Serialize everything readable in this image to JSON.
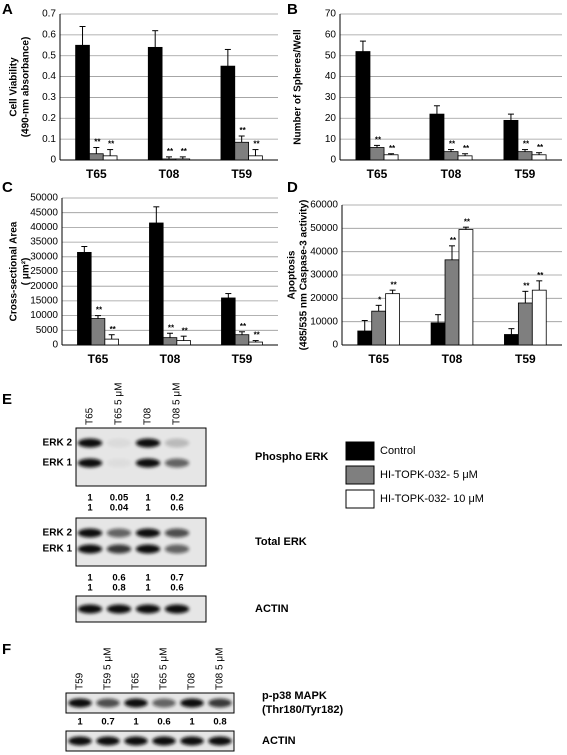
{
  "legend": [
    {
      "name": "Control",
      "color": "#000000"
    },
    {
      "name": "HI-TOPK-032- 5 μM",
      "color": "#7f7f7f"
    },
    {
      "name": "HI-TOPK-032- 10 μM",
      "color": "#ffffff"
    }
  ],
  "chart_data": [
    {
      "type": "bar",
      "panel": "A",
      "ylabel": [
        "Cell Viability",
        "(490-nm absorbance)"
      ],
      "categories": [
        "T65",
        "T08",
        "T59"
      ],
      "ylim": [
        0,
        0.7
      ],
      "yticks": [
        0,
        0.1,
        0.2,
        0.3,
        0.4,
        0.5,
        0.6,
        0.7
      ],
      "grid": true,
      "series": [
        {
          "values": [
            0.55,
            0.54,
            0.45
          ],
          "errors": [
            0.09,
            0.08,
            0.08
          ]
        },
        {
          "values": [
            0.03,
            0.005,
            0.085
          ],
          "errors": [
            0.03,
            0.01,
            0.03
          ],
          "significance": [
            "**",
            "**",
            "**"
          ]
        },
        {
          "values": [
            0.02,
            0.005,
            0.02
          ],
          "errors": [
            0.03,
            0.01,
            0.03
          ],
          "significance": [
            "**",
            "**",
            "**"
          ]
        }
      ]
    },
    {
      "type": "bar",
      "panel": "B",
      "ylabel": [
        "Number of Spheres/Well"
      ],
      "categories": [
        "T65",
        "T08",
        "T59"
      ],
      "ylim": [
        0,
        70
      ],
      "yticks": [
        0,
        10,
        20,
        30,
        40,
        50,
        60,
        70
      ],
      "grid": true,
      "series": [
        {
          "values": [
            52,
            22,
            19
          ],
          "errors": [
            5,
            4,
            3
          ]
        },
        {
          "values": [
            6,
            4,
            4
          ],
          "errors": [
            1,
            1,
            1
          ],
          "significance": [
            "**",
            "**",
            "**"
          ]
        },
        {
          "values": [
            2.5,
            2,
            2.5
          ],
          "errors": [
            0.5,
            1,
            1
          ],
          "significance": [
            "**",
            "**",
            "**"
          ]
        }
      ]
    },
    {
      "type": "bar",
      "panel": "C",
      "ylabel": [
        "Cross-sectional Area",
        "( μm²)"
      ],
      "categories": [
        "T65",
        "T08",
        "T59"
      ],
      "ylim": [
        0,
        50000
      ],
      "yticks": [
        0,
        5000,
        10000,
        15000,
        20000,
        25000,
        30000,
        35000,
        40000,
        45000,
        50000
      ],
      "grid": true,
      "series": [
        {
          "values": [
            31500,
            41500,
            16000
          ],
          "errors": [
            2000,
            5500,
            1500
          ]
        },
        {
          "values": [
            9000,
            2500,
            3500
          ],
          "errors": [
            1000,
            1500,
            1000
          ],
          "significance": [
            "**",
            "**",
            "**"
          ]
        },
        {
          "values": [
            2000,
            1500,
            1000
          ],
          "errors": [
            1500,
            1500,
            500
          ],
          "significance": [
            "**",
            "**",
            "**"
          ]
        }
      ]
    },
    {
      "type": "bar",
      "panel": "D",
      "ylabel": [
        "Apoptosis",
        "(485/535 nm Caspase-3 activity)"
      ],
      "categories": [
        "T65",
        "T08",
        "T59"
      ],
      "ylim": [
        0,
        60000
      ],
      "yticks": [
        0,
        10000,
        20000,
        30000,
        40000,
        50000,
        60000
      ],
      "grid": true,
      "series": [
        {
          "values": [
            6000,
            9500,
            4500
          ],
          "errors": [
            4500,
            3500,
            2500
          ]
        },
        {
          "values": [
            14500,
            36500,
            18000
          ],
          "errors": [
            2500,
            6000,
            5000
          ],
          "significance": [
            "*",
            "**",
            "**"
          ]
        },
        {
          "values": [
            22000,
            49500,
            23500
          ],
          "errors": [
            1500,
            1000,
            4000
          ],
          "significance": [
            "**",
            "**",
            "**"
          ]
        }
      ]
    }
  ],
  "blots": [
    {
      "panel": "E",
      "lanes": [
        "T65",
        "T65 5 μM",
        "T08",
        "T08 5 μM"
      ],
      "sections": [
        {
          "label": [
            "Phospho ERK"
          ],
          "band_labels": [
            "ERK 2",
            "ERK 1"
          ],
          "quant": [
            [
              1,
              0.05,
              1,
              0.2
            ],
            [
              1,
              0.04,
              1,
              0.6
            ]
          ]
        },
        {
          "label": [
            "Total ERK"
          ],
          "band_labels": [
            "ERK 2",
            "ERK 1"
          ],
          "quant": [
            [
              1,
              0.6,
              1,
              0.7
            ],
            [
              1,
              0.8,
              1,
              0.6
            ]
          ]
        },
        {
          "label": [
            "ACTIN"
          ]
        }
      ]
    },
    {
      "panel": "F",
      "lanes": [
        "T59",
        "T59 5 μM",
        "T65",
        "T65 5 μM",
        "T08",
        "T08 5 μM"
      ],
      "sections": [
        {
          "label": [
            "p-p38 MAPK",
            "(Thr180/Tyr182)"
          ],
          "quant": [
            [
              1,
              0.7,
              1,
              0.6,
              1,
              0.8
            ]
          ]
        },
        {
          "label": [
            "ACTIN"
          ]
        }
      ]
    }
  ]
}
